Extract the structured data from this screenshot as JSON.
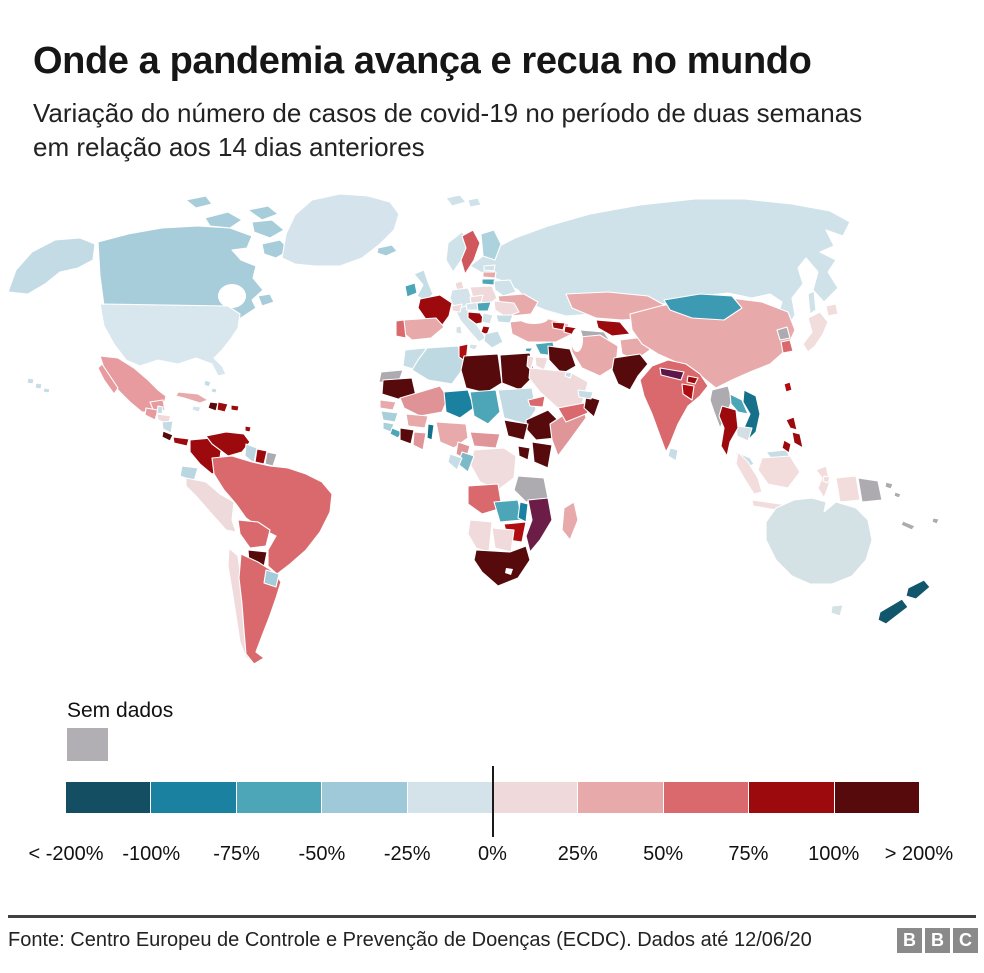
{
  "header": {
    "title": "Onde a pandemia avança e recua no mundo",
    "subtitle": "Variação do número de casos de covid-19 no período de duas semanas\nem relação aos 14 dias anteriores"
  },
  "legend": {
    "no_data": {
      "label": "Sem dados",
      "color": "#b1afb4"
    },
    "scale": {
      "colors": [
        "#134e62",
        "#1b81a1",
        "#4da5b8",
        "#9fc9d8",
        "#d3e3e9",
        "#efd9da",
        "#e8a9ab",
        "#d9696d",
        "#9c0a0d",
        "#570a0c"
      ],
      "labels": [
        "< -200%",
        "-100%",
        "-75%",
        "-50%",
        "-25%",
        "0%",
        "25%",
        "50%",
        "75%",
        "100%",
        "> 200%"
      ]
    }
  },
  "map": {
    "countries": {
      "russia": "#cfe2ea",
      "svalbard": "#cfe2ea",
      "norway": "#cfe2ea",
      "sweden": "#d0585d",
      "finland": "#abd2dd",
      "greenland": "#d5e4ec",
      "iceland": "#a7cdda",
      "canada": "#a7cdda",
      "canada-arctic": "#a7cdda",
      "alaska": "#c3dbe4",
      "usa": "#d8e7ee",
      "hawaii": "#c6dde6",
      "mexico": "#e79b9f",
      "guatemala": "#e79b9f",
      "belize": "#c6dde6",
      "honduras": "#efd9da",
      "nicaragua": "#c3dbe4",
      "costa-rica": "#570a0c",
      "panama": "#9c0a0d",
      "cuba": "#e8a9ab",
      "jamaica": "#d3e3e9",
      "haiti": "#570a0c",
      "dominican-republic": "#9c0a0d",
      "puerto-rico": "#9c0a0d",
      "bahamas": "#c6dde6",
      "trinidad": "#9c0a0d",
      "colombia": "#9c0a0d",
      "venezuela": "#9c0a0d",
      "guyana": "#b9d6e1",
      "suriname": "#9c0a0d",
      "french-guiana": "#adabb0",
      "ecuador": "#b9d6e1",
      "peru": "#eedadb",
      "brazil": "#d9696d",
      "bolivia": "#d9696d",
      "paraguay": "#570a0c",
      "chile": "#f0dadb",
      "argentina": "#d9696d",
      "uruguay": "#a3cbd9",
      "ireland": "#4da5b8",
      "uk": "#c6dde6",
      "denmark": "#efd9da",
      "germany": "#d3e3e9",
      "poland": "#efd9da",
      "estonia": "#cfe2ea",
      "latvia": "#e8a9ab",
      "lithuania": "#4da5b8",
      "belarus": "#cfe2ea",
      "ukraine": "#e8a9ab",
      "france": "#9c0a0d",
      "spain": "#e8a9ab",
      "portugal": "#d9696d",
      "italy": "#d3e3e9",
      "czechia": "#efd9da",
      "austria": "#d3e3e9",
      "switzerland": "#efd9da",
      "hungary": "#4da5b8",
      "croatia": "#9c0a0d",
      "serbia": "#d3e3e9",
      "albania": "#9c0a0d",
      "greece": "#c6dde6",
      "romania": "#efd9da",
      "bulgaria": "#c6dde6",
      "turkey": "#e8a9ab",
      "cyprus": "#4da5b8",
      "syria": "#4da5b8",
      "israel": "#efd9da",
      "jordan": "#efd9da",
      "iraq": "#570a0c",
      "saudi-arabia": "#efd9da",
      "yemen": "#d9696d",
      "oman": "#570a0c",
      "uae": "#c6dde6",
      "kuwait": "#c6dde6",
      "georgia": "#9c0a0d",
      "azerbaijan": "#9c0a0d",
      "iran": "#e8a9ab",
      "afghanistan": "#e8a9ab",
      "pakistan": "#570a0c",
      "turkmenistan": "#adabb0",
      "uzbekistan": "#9c0a0d",
      "kyrgyzstan": "#efd9da",
      "tajikistan": "#cfe2ea",
      "kazakhstan": "#e8a9ab",
      "india": "#d9696d",
      "nepal": "#5c1648",
      "bhutan": "#9c0a0d",
      "bangladesh": "#b00d11",
      "sri-lanka": "#c6dde6",
      "china": "#e8a9ab",
      "mongolia": "#3d9ab3",
      "north-korea": "#adabb0",
      "south-korea": "#d9696d",
      "japan": "#f2dddd",
      "taiwan": "#b00d11",
      "myanmar": "#adabb0",
      "laos": "#4da5b8",
      "vietnam": "#17708a",
      "cambodia": "#d3dfe3",
      "thailand": "#9c0a0d",
      "malaysia": "#c6dde6",
      "malaysia-borneo": "#c6dde6",
      "indonesia": "#f2dcdc",
      "philippines": "#9c0a0d",
      "papua-new-guinea": "#adabb0",
      "solomon-islands": "#adabb0",
      "new-caledonia": "#adabb0",
      "fiji": "#adabb0",
      "australia": "#d4e1e5",
      "new-zealand": "#11566b",
      "morocco": "#c6dde6",
      "western-sahara": "#adabb0",
      "algeria": "#bfd9e3",
      "tunisia": "#b00d11",
      "libya": "#570a0c",
      "egypt": "#570a0c",
      "mauritania": "#570a0c",
      "mali": "#e09396",
      "senegal": "#e8a9ab",
      "guinea": "#a8cfda",
      "sierra-leone": "#a8cfda",
      "liberia": "#4da5b8",
      "ivory-coast": "#570a0c",
      "ghana": "#e09598",
      "burkina-faso": "#e8a9ab",
      "benin": "#14718c",
      "nigeria": "#e8a9ab",
      "niger": "#1b81a1",
      "chad": "#4da5b8",
      "sudan": "#c2dae4",
      "eritrea": "#d9696d",
      "djibouti": "#efd9da",
      "ethiopia": "#570a0c",
      "somalia": "#e09598",
      "kenya": "#570a0c",
      "uganda": "#570a0c",
      "south-sudan": "#570a0c",
      "cameroon": "#e09598",
      "central-african-republic": "#e09598",
      "drc": "#f0dcdd",
      "congo": "#7db9c9",
      "gabon": "#c6dde6",
      "tanzania": "#adabb0",
      "angola": "#d9696d",
      "zambia": "#4da5b8",
      "malawi": "#1b81a1",
      "mozambique": "#6b1d48",
      "zimbabwe": "#b00d11",
      "botswana": "#f0dadb",
      "namibia": "#f0dadb",
      "south-africa": "#570a0c",
      "madagascar": "#e8a9ab"
    }
  },
  "footer": {
    "source": "Fonte: Centro Europeu de Controle e Prevenção de Doenças (ECDC). Dados até 12/06/20",
    "logo_letters": [
      "B",
      "B",
      "C"
    ]
  }
}
